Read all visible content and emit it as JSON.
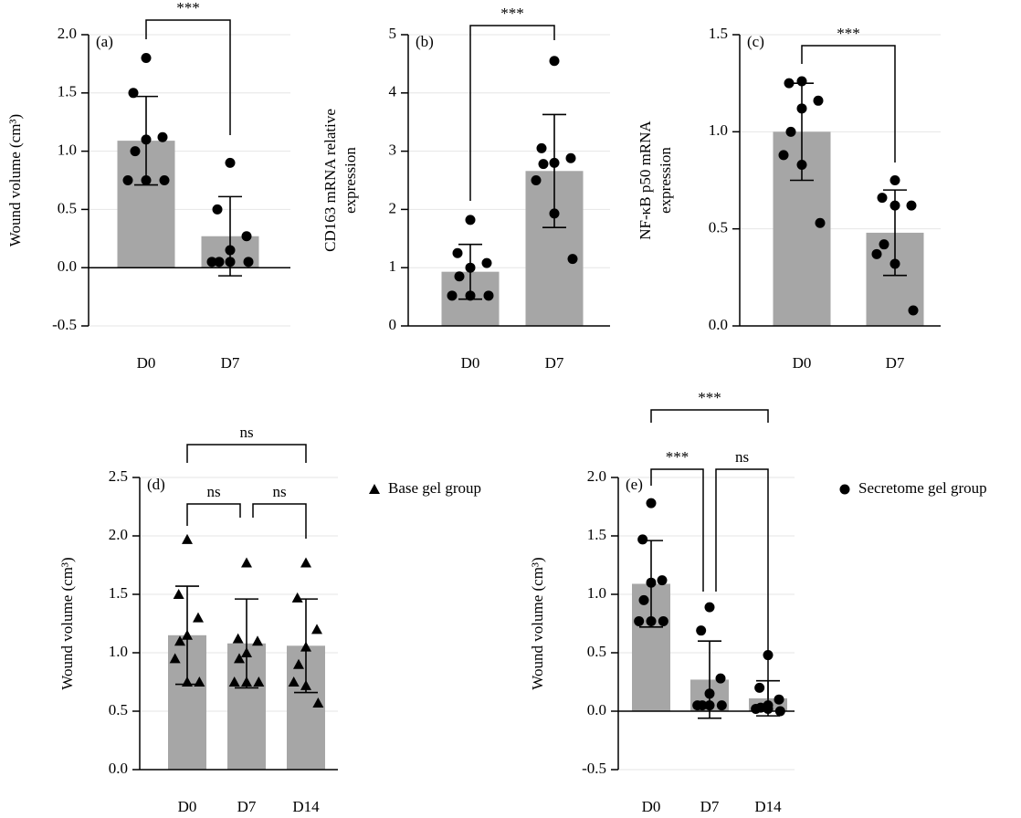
{
  "chart_data": [
    {
      "type": "bar",
      "label": "(a)",
      "ylabel": [
        "Wound volume (cm³)"
      ],
      "categories": [
        "D0",
        "D7"
      ],
      "ylim": [
        -0.5,
        2.0
      ],
      "yticks": [
        -0.5,
        {
          "value": 0,
          "label": "0.0"
        },
        0.5,
        {
          "value": 1,
          "label": "1.0"
        },
        1.5,
        {
          "value": 2,
          "label": "2.0"
        }
      ],
      "grid": true,
      "series": [
        {
          "color": "#a6a6a6",
          "point_color": "#000000",
          "marker": "circle",
          "values": [
            1.09,
            0.27
          ],
          "errors": [
            0.38,
            0.34
          ],
          "points": [
            [
              1.8,
              1.5,
              1.12,
              1.1,
              1.0,
              0.75,
              0.75,
              0.75
            ],
            [
              0.9,
              0.5,
              0.27,
              0.15,
              0.05,
              0.05,
              0.05,
              0.05
            ]
          ]
        }
      ],
      "comparisons": [
        {
          "groups": [
            0,
            1
          ],
          "label": "***"
        }
      ]
    },
    {
      "type": "bar",
      "label": "(b)",
      "ylabel": [
        "CD163 mRNA relative",
        "expression"
      ],
      "categories": [
        "D0",
        "D7"
      ],
      "ylim": [
        0,
        5
      ],
      "yticks": [
        0,
        1,
        2,
        3,
        4,
        5
      ],
      "grid": true,
      "series": [
        {
          "color": "#a6a6a6",
          "point_color": "#000000",
          "marker": "circle",
          "values": [
            0.93,
            2.66
          ],
          "errors": [
            0.47,
            0.97
          ],
          "points": [
            [
              1.82,
              1.25,
              1.08,
              1.0,
              0.85,
              0.52,
              0.52,
              0.52
            ],
            [
              4.55,
              3.05,
              2.88,
              2.8,
              2.78,
              2.5,
              1.93,
              1.15
            ]
          ]
        }
      ],
      "comparisons": [
        {
          "groups": [
            0,
            1
          ],
          "label": "***"
        }
      ]
    },
    {
      "type": "bar",
      "label": "(c)",
      "ylabel": [
        "NF-κB p50 mRNA",
        "expression"
      ],
      "categories": [
        "D0",
        "D7"
      ],
      "ylim": [
        0,
        1.5
      ],
      "yticks": [
        {
          "value": 0,
          "label": "0.0"
        },
        0.5,
        {
          "value": 1,
          "label": "1.0"
        },
        1.5
      ],
      "grid": true,
      "series": [
        {
          "color": "#a6a6a6",
          "point_color": "#000000",
          "marker": "circle",
          "values": [
            1.0,
            0.48
          ],
          "errors": [
            0.25,
            0.22
          ],
          "points": [
            [
              1.26,
              1.25,
              1.16,
              1.12,
              1.0,
              0.88,
              0.83,
              0.53
            ],
            [
              0.75,
              0.66,
              0.62,
              0.62,
              0.42,
              0.37,
              0.32,
              0.08
            ]
          ]
        }
      ],
      "comparisons": [
        {
          "groups": [
            0,
            1
          ],
          "label": "***"
        }
      ]
    },
    {
      "type": "bar",
      "label": "(d)",
      "ylabel": [
        "Wound volume (cm³)"
      ],
      "categories": [
        "D0",
        "D7",
        "D14"
      ],
      "ylim": [
        0,
        2.5
      ],
      "yticks": [
        {
          "value": 0,
          "label": "0.0"
        },
        0.5,
        {
          "value": 1,
          "label": "1.0"
        },
        1.5,
        {
          "value": 2,
          "label": "2.0"
        },
        2.5
      ],
      "grid": true,
      "legend": "right",
      "series": [
        {
          "name": "Base gel group",
          "color": "#a6a6a6",
          "point_color": "#000000",
          "marker": "triangle",
          "values": [
            1.15,
            1.08,
            1.06
          ],
          "errors": [
            0.42,
            0.38,
            0.4
          ],
          "points": [
            [
              1.97,
              1.5,
              1.3,
              1.15,
              1.1,
              0.95,
              0.75,
              0.75
            ],
            [
              1.77,
              1.12,
              1.1,
              1.0,
              0.95,
              0.75,
              0.75,
              0.75
            ],
            [
              1.77,
              1.47,
              1.2,
              1.05,
              0.9,
              0.75,
              0.72,
              0.57
            ]
          ]
        }
      ],
      "comparisons": [
        {
          "groups": [
            0,
            2
          ],
          "label": "ns"
        },
        {
          "groups": [
            0,
            1
          ],
          "label": "ns"
        },
        {
          "groups": [
            1,
            2
          ],
          "label": "ns"
        }
      ]
    },
    {
      "type": "bar",
      "label": "(e)",
      "ylabel": [
        "Wound volume (cm³)"
      ],
      "categories": [
        "D0",
        "D7",
        "D14"
      ],
      "ylim": [
        -0.5,
        2.0
      ],
      "yticks": [
        -0.5,
        {
          "value": 0,
          "label": "0.0"
        },
        0.5,
        {
          "value": 1,
          "label": "1.0"
        },
        1.5,
        {
          "value": 2,
          "label": "2.0"
        }
      ],
      "grid": true,
      "legend": "right",
      "series": [
        {
          "name": "Secretome gel group",
          "color": "#a6a6a6",
          "point_color": "#000000",
          "marker": "circle",
          "values": [
            1.09,
            0.27,
            0.11
          ],
          "errors": [
            0.37,
            0.33,
            0.15
          ],
          "points": [
            [
              1.78,
              1.47,
              1.12,
              1.1,
              0.95,
              0.77,
              0.77,
              0.77
            ],
            [
              0.89,
              0.69,
              0.28,
              0.15,
              0.05,
              0.05,
              0.05,
              0.05
            ],
            [
              0.48,
              0.2,
              0.1,
              0.05,
              0.03,
              0.02,
              0.02,
              0.0
            ]
          ]
        }
      ],
      "comparisons": [
        {
          "groups": [
            0,
            2
          ],
          "label": "***"
        },
        {
          "groups": [
            0,
            1
          ],
          "label": "***"
        },
        {
          "groups": [
            1,
            2
          ],
          "label": "ns"
        }
      ]
    }
  ]
}
